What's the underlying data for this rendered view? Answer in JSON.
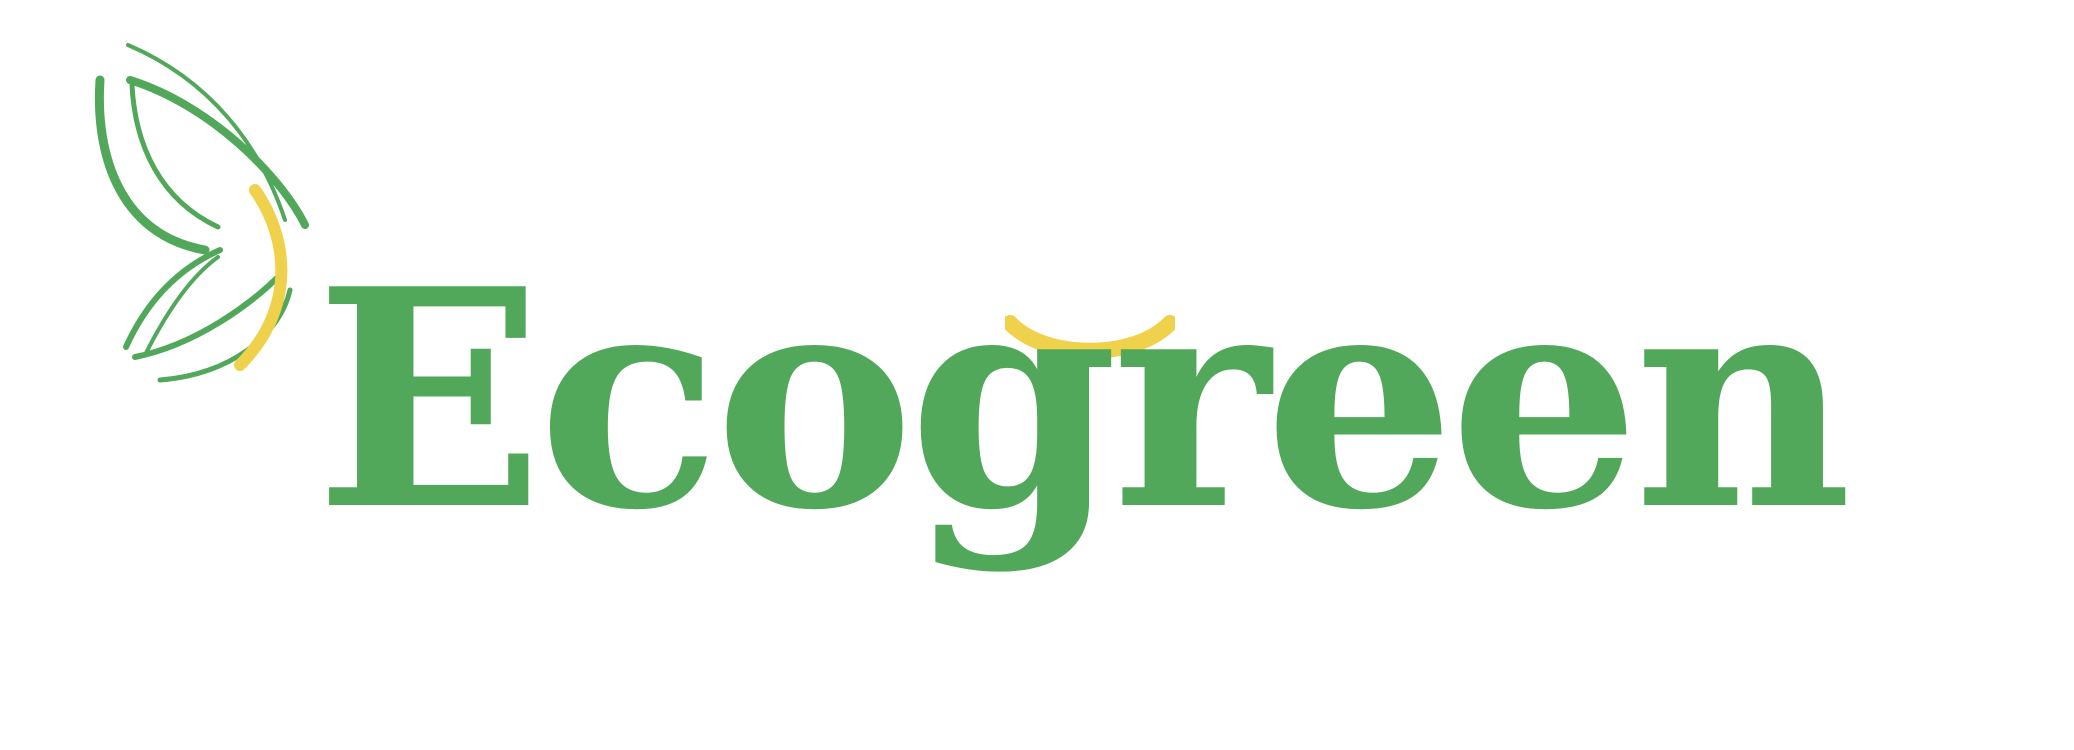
{
  "brand": {
    "name": "Ecogreen"
  },
  "colors": {
    "primary_green": "#52a85a",
    "accent_yellow": "#efd14c",
    "background": "#ffffff"
  },
  "icons": {
    "logo_mark": "leaf-butterfly-icon",
    "accent_mark": "smile-arc-icon"
  }
}
